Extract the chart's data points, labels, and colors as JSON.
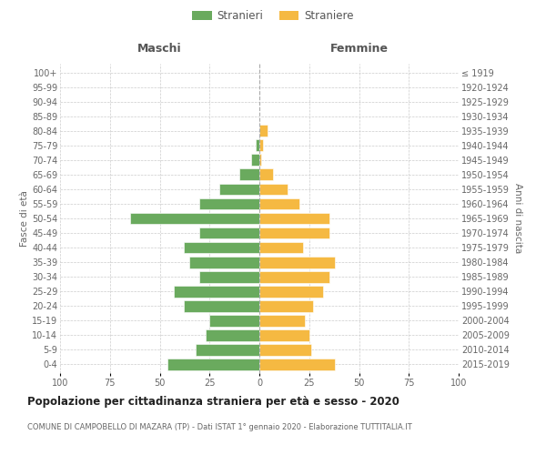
{
  "age_groups": [
    "0-4",
    "5-9",
    "10-14",
    "15-19",
    "20-24",
    "25-29",
    "30-34",
    "35-39",
    "40-44",
    "45-49",
    "50-54",
    "55-59",
    "60-64",
    "65-69",
    "70-74",
    "75-79",
    "80-84",
    "85-89",
    "90-94",
    "95-99",
    "100+"
  ],
  "birth_years": [
    "2015-2019",
    "2010-2014",
    "2005-2009",
    "2000-2004",
    "1995-1999",
    "1990-1994",
    "1985-1989",
    "1980-1984",
    "1975-1979",
    "1970-1974",
    "1965-1969",
    "1960-1964",
    "1955-1959",
    "1950-1954",
    "1945-1949",
    "1940-1944",
    "1935-1939",
    "1930-1934",
    "1925-1929",
    "1920-1924",
    "≤ 1919"
  ],
  "males": [
    46,
    32,
    27,
    25,
    38,
    43,
    30,
    35,
    38,
    30,
    65,
    30,
    20,
    10,
    4,
    2,
    0,
    0,
    0,
    0,
    0
  ],
  "females": [
    38,
    26,
    25,
    23,
    27,
    32,
    35,
    38,
    22,
    35,
    35,
    20,
    14,
    7,
    1,
    2,
    4,
    0,
    0,
    0,
    0
  ],
  "male_color": "#6aaa5e",
  "female_color": "#f5b942",
  "title": "Popolazione per cittadinanza straniera per età e sesso - 2020",
  "subtitle": "COMUNE DI CAMPOBELLO DI MAZARA (TP) - Dati ISTAT 1° gennaio 2020 - Elaborazione TUTTITALIA.IT",
  "xlabel_left": "Maschi",
  "xlabel_right": "Femmine",
  "ylabel_left": "Fasce di età",
  "ylabel_right": "Anni di nascita",
  "legend_male": "Stranieri",
  "legend_female": "Straniere",
  "xlim": 100,
  "background_color": "#ffffff",
  "grid_color": "#cccccc"
}
